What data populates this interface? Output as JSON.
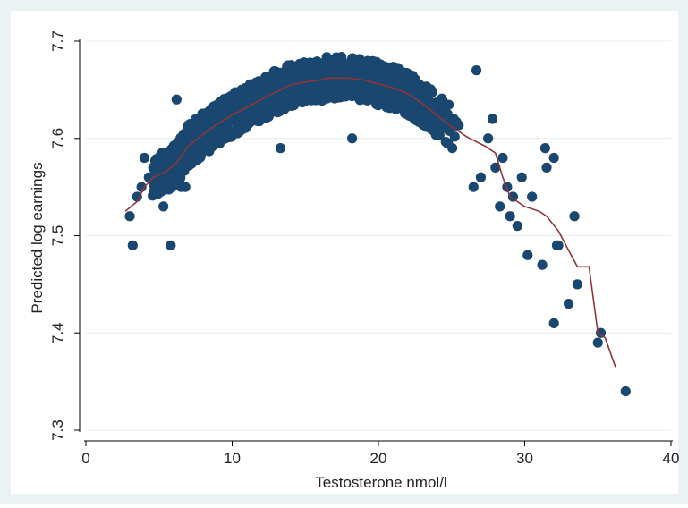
{
  "chart_data": {
    "type": "scatter",
    "xlabel": "Testosterone nmol/l",
    "ylabel": "Predicted log earnings",
    "xlim": [
      0,
      40
    ],
    "ylim": [
      7.3,
      7.7
    ],
    "x_ticks": [
      0,
      10,
      20,
      30,
      40
    ],
    "y_ticks": [
      7.3,
      7.4,
      7.5,
      7.6,
      7.7
    ],
    "x_tick_labels": [
      "0",
      "10",
      "20",
      "30",
      "40"
    ],
    "y_tick_labels": [
      "7.3",
      "7.4",
      "7.5",
      "7.6",
      "7.7"
    ],
    "grid": "horizontal",
    "legend": "none",
    "colors": {
      "outer_background": "#eaf2f3",
      "plot_background": "#ffffff",
      "grid": "#e6ecee",
      "points": "#1a476f",
      "fit_line": "#90353b",
      "axis": "#000000"
    },
    "series": [
      {
        "type": "scatter",
        "note_points_described": "dense cloud following an inverted-U shape plus outliers",
        "values": [
          [
            3.0,
            7.52
          ],
          [
            3.2,
            7.49
          ],
          [
            3.5,
            7.54
          ],
          [
            3.8,
            7.55
          ],
          [
            4.0,
            7.58
          ],
          [
            4.3,
            7.56
          ],
          [
            4.6,
            7.57
          ],
          [
            5.0,
            7.57
          ],
          [
            5.3,
            7.53
          ],
          [
            5.5,
            7.56
          ],
          [
            5.8,
            7.49
          ],
          [
            6.0,
            7.58
          ],
          [
            6.2,
            7.64
          ],
          [
            6.5,
            7.55
          ],
          [
            6.8,
            7.55
          ],
          [
            18.2,
            7.6
          ],
          [
            13.3,
            7.59
          ],
          [
            21.2,
            7.63
          ],
          [
            26.7,
            7.67
          ],
          [
            26.5,
            7.55
          ],
          [
            27.0,
            7.56
          ],
          [
            27.5,
            7.6
          ],
          [
            27.8,
            7.62
          ],
          [
            28.0,
            7.57
          ],
          [
            28.3,
            7.53
          ],
          [
            28.5,
            7.58
          ],
          [
            28.8,
            7.55
          ],
          [
            29.0,
            7.52
          ],
          [
            29.2,
            7.54
          ],
          [
            29.5,
            7.51
          ],
          [
            29.8,
            7.56
          ],
          [
            30.2,
            7.48
          ],
          [
            30.5,
            7.54
          ],
          [
            31.2,
            7.47
          ],
          [
            31.4,
            7.59
          ],
          [
            31.5,
            7.57
          ],
          [
            32.0,
            7.58
          ],
          [
            32.2,
            7.49
          ],
          [
            32.0,
            7.41
          ],
          [
            32.3,
            7.49
          ],
          [
            33.0,
            7.43
          ],
          [
            33.4,
            7.52
          ],
          [
            33.6,
            7.45
          ],
          [
            35.0,
            7.39
          ],
          [
            35.2,
            7.4
          ],
          [
            36.9,
            7.34
          ]
        ]
      },
      {
        "type": "line",
        "values": [
          [
            2.7,
            7.525
          ],
          [
            3.5,
            7.535
          ],
          [
            4.0,
            7.55
          ],
          [
            4.6,
            7.56
          ],
          [
            5.5,
            7.566
          ],
          [
            6.2,
            7.575
          ],
          [
            7.0,
            7.592
          ],
          [
            8.0,
            7.604
          ],
          [
            9.0,
            7.615
          ],
          [
            10.0,
            7.624
          ],
          [
            11.0,
            7.632
          ],
          [
            12.0,
            7.64
          ],
          [
            13.0,
            7.648
          ],
          [
            14.0,
            7.655
          ],
          [
            15.0,
            7.658
          ],
          [
            16.0,
            7.66
          ],
          [
            16.5,
            7.662
          ],
          [
            17.0,
            7.662
          ],
          [
            18.0,
            7.662
          ],
          [
            19.0,
            7.66
          ],
          [
            20.0,
            7.656
          ],
          [
            21.0,
            7.652
          ],
          [
            22.0,
            7.646
          ],
          [
            23.0,
            7.636
          ],
          [
            24.0,
            7.624
          ],
          [
            25.0,
            7.612
          ],
          [
            26.0,
            7.602
          ],
          [
            26.5,
            7.598
          ],
          [
            27.3,
            7.592
          ],
          [
            28.0,
            7.585
          ],
          [
            28.5,
            7.56
          ],
          [
            29.0,
            7.54
          ],
          [
            30.0,
            7.53
          ],
          [
            31.0,
            7.525
          ],
          [
            31.5,
            7.52
          ],
          [
            32.3,
            7.505
          ],
          [
            33.0,
            7.485
          ],
          [
            33.6,
            7.468
          ],
          [
            34.4,
            7.468
          ],
          [
            35.0,
            7.4
          ],
          [
            35.5,
            7.395
          ],
          [
            36.2,
            7.365
          ]
        ]
      }
    ]
  }
}
